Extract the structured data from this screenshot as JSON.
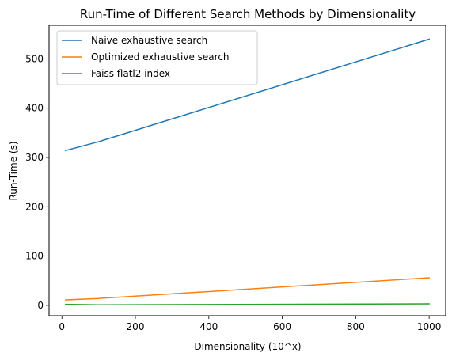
{
  "chart_data": {
    "type": "line",
    "title": "Run-Time of Different Search Methods by Dimensionality",
    "xlabel": "Dimensionality (10^x)",
    "ylabel": "Run-Time (s)",
    "xlim": [
      -35,
      1045
    ],
    "ylim": [
      -21,
      568
    ],
    "xticks": [
      0,
      200,
      400,
      600,
      800,
      1000
    ],
    "yticks": [
      0,
      100,
      200,
      300,
      400,
      500
    ],
    "grid": false,
    "legend_position": "top-left",
    "x": [
      10,
      100,
      1000
    ],
    "series": [
      {
        "name": "Naive exhaustive search",
        "color": "#1f77b4",
        "values": [
          314,
          332,
          540
        ]
      },
      {
        "name": "Optimized exhaustive search",
        "color": "#ff7f0e",
        "values": [
          11,
          14,
          56
        ]
      },
      {
        "name": "Faiss flatl2 index",
        "color": "#2ca02c",
        "values": [
          2,
          1,
          3
        ]
      }
    ]
  }
}
